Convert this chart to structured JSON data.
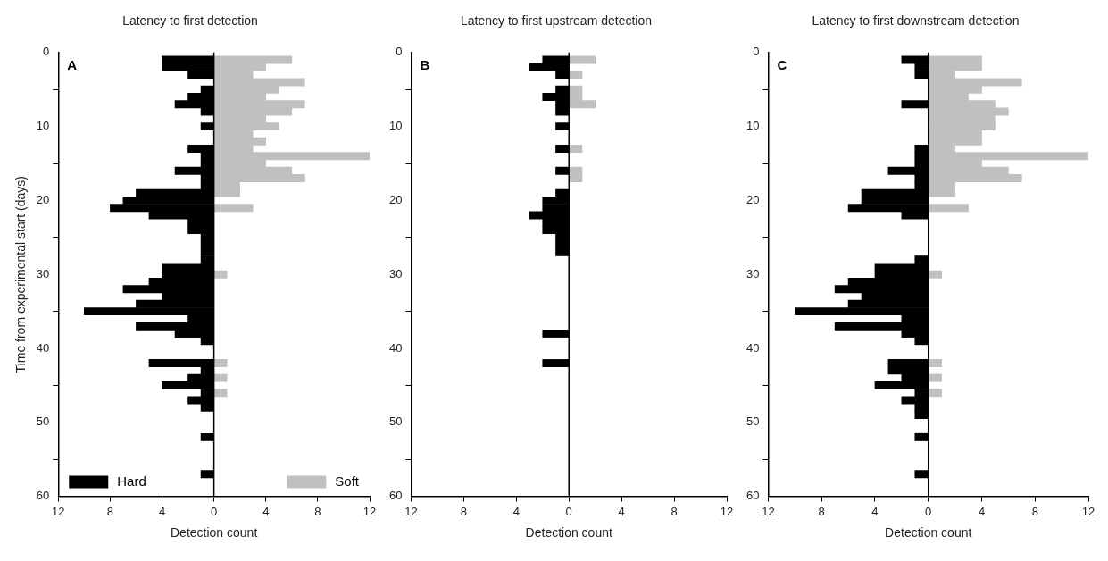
{
  "chart_data": [
    {
      "type": "bar",
      "title": "Latency to first detection",
      "xlabel": "Detection count",
      "ylabel": "Time from experimental start (days)",
      "orientation": "horizontal",
      "annotations": [
        "A"
      ],
      "x": [
        1,
        2,
        3,
        4,
        5,
        6,
        7,
        8,
        9,
        10,
        11,
        12,
        13,
        14,
        15,
        16,
        17,
        18,
        19,
        20,
        21,
        22,
        23,
        24,
        25,
        26,
        27,
        28,
        29,
        30,
        31,
        32,
        33,
        34,
        35,
        36,
        37,
        38,
        39,
        40,
        41,
        42,
        43,
        44,
        45,
        46,
        47,
        48,
        49,
        50,
        51,
        52,
        53,
        54,
        55,
        56,
        57
      ],
      "series": [
        {
          "name": "Hard",
          "color": "#000000",
          "values": [
            -4,
            -4,
            -2,
            null,
            -1,
            -2,
            -3,
            -1,
            null,
            -1,
            null,
            null,
            -2,
            -1,
            -1,
            -3,
            -1,
            -1,
            -6,
            -7,
            -8,
            -5,
            -2,
            -2,
            -1,
            -1,
            -1,
            -1,
            -4,
            -4,
            -5,
            -7,
            -4,
            -6,
            -10,
            -2,
            -6,
            -3,
            -1,
            null,
            null,
            -5,
            -1,
            -2,
            -4,
            -1,
            -2,
            -1,
            null,
            null,
            null,
            -1,
            null,
            null,
            null,
            null,
            -1
          ]
        },
        {
          "name": "Soft",
          "color": "#c0c0c0",
          "values": [
            6,
            4,
            3,
            7,
            5,
            4,
            7,
            6,
            4,
            5,
            3,
            4,
            3,
            12,
            4,
            6,
            7,
            2,
            2,
            null,
            3,
            null,
            null,
            null,
            null,
            null,
            null,
            null,
            null,
            1,
            null,
            null,
            null,
            null,
            null,
            null,
            null,
            null,
            null,
            null,
            null,
            1,
            null,
            1,
            null,
            1,
            null,
            null,
            null,
            null,
            null,
            null,
            null,
            null,
            null,
            null,
            null
          ]
        }
      ],
      "xlim": [
        -12,
        12
      ],
      "xticks": [
        {
          "value": -12,
          "label": "12"
        },
        {
          "value": -8,
          "label": "8"
        },
        {
          "value": -4,
          "label": "4"
        },
        0,
        4,
        8,
        12
      ],
      "ylim": [
        60,
        0
      ],
      "yticks": [
        0,
        10,
        20,
        30,
        40,
        50,
        60
      ],
      "ref_lines": [
        {
          "axis": "x",
          "value": 0
        }
      ],
      "legend": "bottom"
    },
    {
      "type": "bar",
      "title": "Latency to first upstream detection",
      "xlabel": "Detection count",
      "orientation": "horizontal",
      "annotations": [
        "B"
      ],
      "x": [
        1,
        2,
        3,
        4,
        5,
        6,
        7,
        8,
        9,
        10,
        11,
        12,
        13,
        14,
        15,
        16,
        17,
        18,
        19,
        20,
        21,
        22,
        23,
        24,
        25,
        26,
        27,
        28,
        29,
        30,
        31,
        32,
        33,
        34,
        35,
        36,
        37,
        38,
        39,
        40,
        41,
        42
      ],
      "series": [
        {
          "color": "#000000",
          "values": [
            -2,
            -3,
            -1,
            null,
            -1,
            -2,
            -1,
            -1,
            null,
            -1,
            null,
            null,
            -1,
            null,
            null,
            -1,
            null,
            null,
            -1,
            -2,
            -2,
            -3,
            -2,
            -2,
            -1,
            -1,
            -1,
            null,
            null,
            null,
            null,
            null,
            null,
            null,
            null,
            null,
            null,
            -2,
            null,
            null,
            null,
            -2
          ]
        },
        {
          "color": "#c0c0c0",
          "values": [
            2,
            null,
            1,
            null,
            1,
            1,
            2,
            null,
            null,
            null,
            null,
            null,
            1,
            null,
            null,
            1,
            1,
            null,
            null,
            null,
            null,
            null,
            null,
            null,
            null,
            null,
            null,
            null,
            null,
            null,
            null,
            null,
            null,
            null,
            null,
            null,
            null,
            null,
            null,
            null,
            null,
            null
          ]
        }
      ],
      "xlim": [
        -12,
        12
      ],
      "xticks": [
        {
          "value": -12,
          "label": "12"
        },
        {
          "value": -8,
          "label": "8"
        },
        {
          "value": -4,
          "label": "4"
        },
        0,
        4,
        8,
        12
      ],
      "ylim": [
        60,
        0
      ],
      "yticks": [
        0,
        10,
        20,
        30,
        40,
        50,
        60
      ],
      "ref_lines": [
        {
          "axis": "x",
          "value": 0
        }
      ]
    },
    {
      "type": "bar",
      "title": "Latency to first downstream detection",
      "xlabel": "Detection count",
      "orientation": "horizontal",
      "annotations": [
        "C"
      ],
      "x": [
        1,
        2,
        3,
        4,
        5,
        6,
        7,
        8,
        9,
        10,
        11,
        12,
        13,
        14,
        15,
        16,
        17,
        18,
        19,
        20,
        21,
        22,
        23,
        24,
        25,
        26,
        27,
        28,
        29,
        30,
        31,
        32,
        33,
        34,
        35,
        36,
        37,
        38,
        39,
        40,
        41,
        42,
        43,
        44,
        45,
        46,
        47,
        48,
        49,
        50,
        51,
        52,
        53,
        54,
        55,
        56,
        57
      ],
      "series": [
        {
          "color": "#000000",
          "values": [
            -2,
            -1,
            -1,
            null,
            null,
            null,
            -2,
            null,
            null,
            null,
            null,
            null,
            -1,
            -1,
            -1,
            -3,
            -1,
            -1,
            -5,
            -5,
            -6,
            -2,
            null,
            null,
            null,
            null,
            null,
            -1,
            -4,
            -4,
            -6,
            -7,
            -5,
            -6,
            -10,
            -2,
            -7,
            -2,
            -1,
            null,
            null,
            -3,
            -3,
            -2,
            -4,
            -1,
            -2,
            -1,
            -1,
            null,
            null,
            -1,
            null,
            null,
            null,
            null,
            -1
          ]
        },
        {
          "color": "#c0c0c0",
          "values": [
            4,
            4,
            2,
            7,
            4,
            3,
            5,
            6,
            5,
            5,
            4,
            4,
            2,
            12,
            4,
            6,
            7,
            2,
            2,
            null,
            3,
            null,
            null,
            null,
            null,
            null,
            null,
            null,
            null,
            1,
            null,
            null,
            null,
            null,
            null,
            null,
            null,
            null,
            null,
            null,
            null,
            1,
            null,
            1,
            null,
            1,
            null,
            null,
            null,
            null,
            null,
            null,
            null,
            null,
            null,
            null,
            null
          ]
        }
      ],
      "xlim": [
        -12,
        12
      ],
      "xticks": [
        {
          "value": -12,
          "label": "12"
        },
        {
          "value": -8,
          "label": "8"
        },
        {
          "value": -4,
          "label": "4"
        },
        0,
        4,
        8,
        12
      ],
      "ylim": [
        60,
        0
      ],
      "yticks": [
        0,
        10,
        20,
        30,
        40,
        50,
        60
      ],
      "ref_lines": [
        {
          "axis": "x",
          "value": 0
        }
      ]
    }
  ]
}
